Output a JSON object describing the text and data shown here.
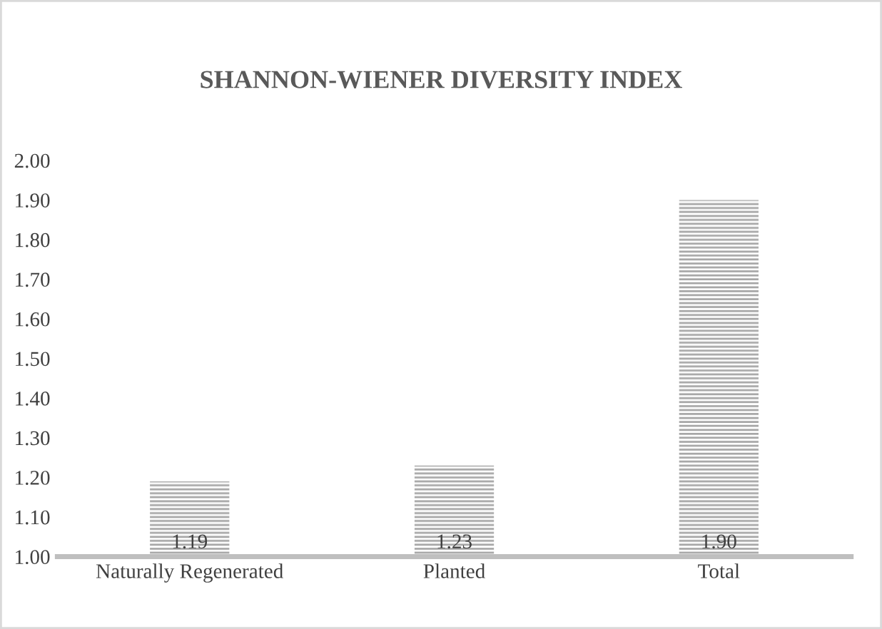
{
  "chart_data": {
    "type": "bar",
    "title": "SHANNON-WIENER DIVERSITY INDEX",
    "categories": [
      "Naturally Regenerated",
      "Planted",
      "Total"
    ],
    "values": [
      1.19,
      1.23,
      1.9
    ],
    "value_labels": [
      "1.19",
      "1.23",
      "1.90"
    ],
    "color": "#a6a6a6",
    "ylim": [
      1.0,
      2.0
    ],
    "yticks": [
      {
        "value": 1.0,
        "label": "1.00"
      },
      {
        "value": 1.1,
        "label": "1.10"
      },
      {
        "value": 1.2,
        "label": "1.20"
      },
      {
        "value": 1.3,
        "label": "1.30"
      },
      {
        "value": 1.4,
        "label": "1.40"
      },
      {
        "value": 1.5,
        "label": "1.50"
      },
      {
        "value": 1.6,
        "label": "1.60"
      },
      {
        "value": 1.7,
        "label": "1.70"
      },
      {
        "value": 1.8,
        "label": "1.80"
      },
      {
        "value": 1.9,
        "label": "1.90"
      },
      {
        "value": 2.0,
        "label": "2.00"
      }
    ]
  }
}
